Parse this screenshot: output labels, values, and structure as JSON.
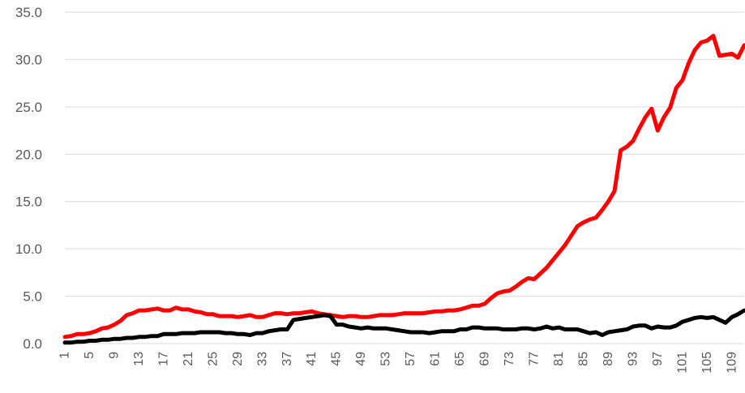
{
  "chart_data": {
    "type": "line",
    "title": "",
    "xlabel": "",
    "ylabel": "",
    "ylim": [
      0,
      35
    ],
    "yticks": [
      "0.0",
      "5.0",
      "10.0",
      "15.0",
      "20.0",
      "25.0",
      "30.0",
      "35.0"
    ],
    "xtick_labels": [
      "1",
      "5",
      "9",
      "13",
      "17",
      "21",
      "25",
      "29",
      "33",
      "37",
      "41",
      "45",
      "49",
      "53",
      "57",
      "61",
      "65",
      "69",
      "73",
      "77",
      "81",
      "85",
      "89",
      "93",
      "97",
      "101",
      "105",
      "109"
    ],
    "grid": true,
    "legend": "none",
    "series": [
      {
        "color": "#ff0000",
        "values": [
          0.7,
          0.8,
          1.0,
          1.0,
          1.1,
          1.3,
          1.6,
          1.7,
          2.0,
          2.4,
          3.0,
          3.2,
          3.5,
          3.5,
          3.6,
          3.7,
          3.5,
          3.5,
          3.8,
          3.6,
          3.6,
          3.4,
          3.3,
          3.1,
          3.1,
          2.9,
          2.9,
          2.9,
          2.8,
          2.9,
          3.0,
          2.8,
          2.8,
          3.0,
          3.2,
          3.2,
          3.1,
          3.2,
          3.2,
          3.3,
          3.4,
          3.2,
          3.1,
          3.0,
          2.9,
          2.8,
          2.9,
          2.9,
          2.8,
          2.8,
          2.9,
          3.0,
          3.0,
          3.0,
          3.1,
          3.2,
          3.2,
          3.2,
          3.2,
          3.3,
          3.4,
          3.4,
          3.5,
          3.5,
          3.6,
          3.8,
          4.0,
          4.0,
          4.2,
          4.8,
          5.3,
          5.5,
          5.6,
          6.0,
          6.5,
          6.9,
          6.8,
          7.4,
          8.0,
          8.8,
          9.6,
          10.4,
          11.4,
          12.4,
          12.8,
          13.1,
          13.3,
          14.1,
          15.0,
          16.1,
          20.4,
          20.8,
          21.4,
          22.7,
          23.9,
          24.8,
          22.5,
          23.9,
          24.9,
          27.0,
          27.8,
          29.6,
          31.0,
          31.8,
          32.0,
          32.5,
          30.4,
          30.5,
          30.6,
          30.2,
          31.5
        ]
      },
      {
        "color": "#000000",
        "values": [
          0.1,
          0.1,
          0.2,
          0.2,
          0.3,
          0.3,
          0.4,
          0.4,
          0.5,
          0.5,
          0.6,
          0.6,
          0.7,
          0.7,
          0.8,
          0.8,
          1.0,
          1.0,
          1.0,
          1.1,
          1.1,
          1.1,
          1.2,
          1.2,
          1.2,
          1.2,
          1.1,
          1.1,
          1.0,
          1.0,
          0.9,
          1.1,
          1.1,
          1.3,
          1.4,
          1.5,
          1.5,
          2.5,
          2.6,
          2.7,
          2.8,
          2.9,
          3.0,
          2.9,
          2.0,
          2.0,
          1.8,
          1.7,
          1.6,
          1.7,
          1.6,
          1.6,
          1.6,
          1.5,
          1.4,
          1.3,
          1.2,
          1.2,
          1.2,
          1.1,
          1.2,
          1.3,
          1.3,
          1.3,
          1.5,
          1.5,
          1.7,
          1.7,
          1.6,
          1.6,
          1.6,
          1.5,
          1.5,
          1.5,
          1.6,
          1.6,
          1.5,
          1.6,
          1.8,
          1.6,
          1.7,
          1.5,
          1.5,
          1.5,
          1.3,
          1.1,
          1.2,
          0.9,
          1.2,
          1.3,
          1.4,
          1.5,
          1.8,
          1.9,
          1.9,
          1.6,
          1.8,
          1.7,
          1.7,
          1.9,
          2.3,
          2.5,
          2.7,
          2.8,
          2.7,
          2.8,
          2.5,
          2.2,
          2.8,
          3.1,
          3.5
        ]
      }
    ]
  }
}
